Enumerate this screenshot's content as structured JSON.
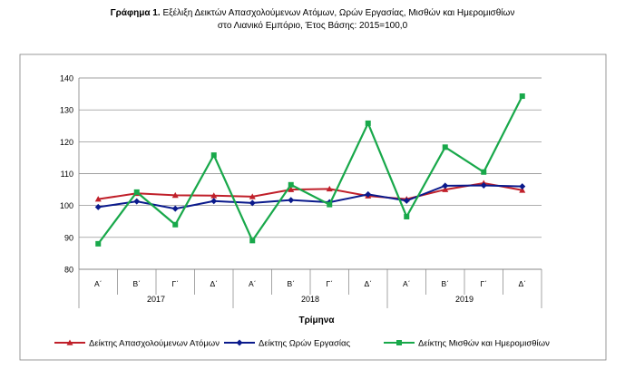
{
  "title": {
    "prefix": "Γράφημα 1.",
    "line1": "Εξέλιξη Δεικτών Απασχολούμενων Ατόμων, Ωρών Εργασίας, Μισθών και Ημερομισθίων",
    "line2": "στο Λιανικό Εμπόριο, Έτος Βάσης: 2015=100,0"
  },
  "chart_data": {
    "type": "line",
    "xlabel": "Τρίμηνα",
    "ylabel": "",
    "ylim": [
      80,
      140
    ],
    "yticks": [
      80,
      90,
      100,
      110,
      120,
      130,
      140
    ],
    "categories": [
      "Α΄",
      "Β΄",
      "Γ΄",
      "Δ΄",
      "Α΄",
      "Β΄",
      "Γ΄",
      "Δ΄",
      "Α΄",
      "Β΄",
      "Γ΄",
      "Δ΄"
    ],
    "groups": [
      {
        "label": "2017",
        "count": 4
      },
      {
        "label": "2018",
        "count": 4
      },
      {
        "label": "2019",
        "count": 4
      }
    ],
    "grid": true,
    "legend_position": "bottom",
    "series": [
      {
        "name": "Δείκτης Απασχολούμενων Ατόμων",
        "color": "#c0202a",
        "marker": "triangle",
        "values": [
          102.0,
          103.8,
          103.2,
          103.1,
          102.8,
          105.0,
          105.2,
          103.0,
          102.0,
          105.0,
          107.0,
          104.8
        ]
      },
      {
        "name": "Δείκτης Ωρών Εργασίας",
        "color": "#0a1a8c",
        "marker": "diamond",
        "values": [
          99.5,
          101.3,
          99.0,
          101.4,
          100.8,
          101.7,
          101.0,
          103.5,
          101.5,
          106.2,
          106.3,
          106.0
        ]
      },
      {
        "name": "Δείκτης Μισθών και Ημερομισθίων",
        "color": "#18a84a",
        "marker": "square",
        "values": [
          88.0,
          104.2,
          94.0,
          115.8,
          89.0,
          106.5,
          100.3,
          125.8,
          96.5,
          118.3,
          110.5,
          134.3
        ]
      }
    ]
  }
}
